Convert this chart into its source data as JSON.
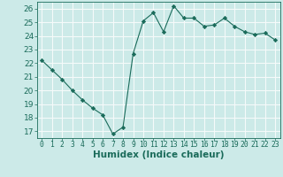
{
  "x": [
    0,
    1,
    2,
    3,
    4,
    5,
    6,
    7,
    8,
    9,
    10,
    11,
    12,
    13,
    14,
    15,
    16,
    17,
    18,
    19,
    20,
    21,
    22,
    23
  ],
  "y": [
    22.2,
    21.5,
    20.8,
    20.0,
    19.3,
    18.7,
    18.2,
    16.8,
    17.3,
    22.7,
    25.1,
    25.7,
    24.3,
    26.2,
    25.3,
    25.3,
    24.7,
    24.8,
    25.3,
    24.7,
    24.3,
    24.1,
    24.2,
    23.7
  ],
  "line_color": "#1a6b5a",
  "marker": "D",
  "marker_size": 2.2,
  "bg_color": "#cceae8",
  "grid_color": "#f5fafa",
  "ylabel_values": [
    17,
    18,
    19,
    20,
    21,
    22,
    23,
    24,
    25,
    26
  ],
  "xlabel": "Humidex (Indice chaleur)",
  "ylim": [
    16.5,
    26.5
  ],
  "xlim": [
    -0.5,
    23.5
  ],
  "tick_label_color": "#1a6b5a",
  "xlabel_fontsize": 7.5,
  "ytick_fontsize": 6.5,
  "xtick_fontsize": 5.8
}
